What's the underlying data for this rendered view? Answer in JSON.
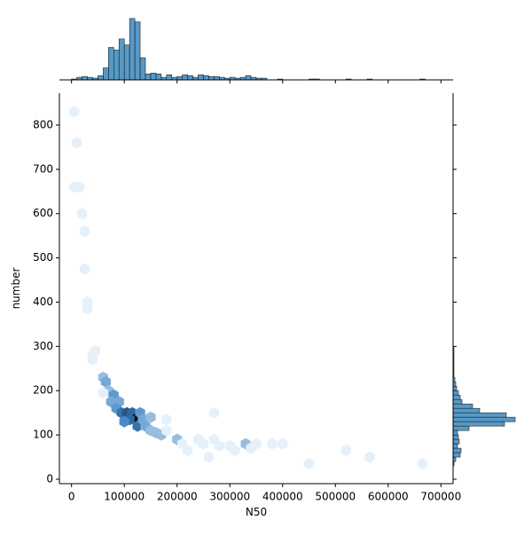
{
  "chart_data": [
    {
      "type": "hexbin",
      "xlabel": "N50",
      "ylabel": "number",
      "xlim": [
        -23000,
        723000
      ],
      "ylim": [
        -10,
        872
      ],
      "xticks": [
        0,
        100000,
        200000,
        300000,
        400000,
        500000,
        600000,
        700000
      ],
      "yticks": [
        0,
        100,
        200,
        300,
        400,
        500,
        600,
        700,
        800
      ],
      "colors": [
        "#e6f0fa",
        "#3a82c2",
        "#0a0a14"
      ],
      "x": [
        5000,
        10000,
        5000,
        15000,
        20000,
        25000,
        25000,
        30000,
        30000,
        40000,
        45000,
        40000,
        60000,
        65000,
        70000,
        60000,
        80000,
        75000,
        90000,
        85000,
        95000,
        105000,
        115000,
        120000,
        110000,
        100000,
        125000,
        130000,
        135000,
        140000,
        150000,
        160000,
        170000,
        180000,
        200000,
        210000,
        220000,
        240000,
        250000,
        270000,
        270000,
        280000,
        300000,
        310000,
        330000,
        340000,
        350000,
        380000,
        400000,
        450000,
        520000,
        565000,
        665000,
        260000,
        150000,
        180000
      ],
      "y": [
        830,
        760,
        660,
        660,
        600,
        560,
        475,
        400,
        385,
        280,
        290,
        270,
        230,
        220,
        200,
        195,
        190,
        175,
        175,
        160,
        150,
        150,
        150,
        135,
        135,
        130,
        120,
        150,
        135,
        120,
        110,
        105,
        100,
        110,
        90,
        80,
        65,
        90,
        80,
        90,
        150,
        75,
        75,
        65,
        80,
        70,
        80,
        80,
        80,
        35,
        65,
        50,
        35,
        50,
        140,
        135
      ],
      "counts": [
        1,
        1,
        1,
        1,
        1,
        1,
        1,
        1,
        1,
        1,
        1,
        1,
        2,
        3,
        2,
        1,
        4,
        3,
        3,
        4,
        7,
        10,
        8,
        20,
        8,
        5,
        7,
        4,
        3,
        3,
        2,
        2,
        2,
        1,
        2,
        1,
        1,
        1,
        1,
        1,
        1,
        1,
        1,
        1,
        2,
        1,
        1,
        1,
        1,
        1,
        1,
        1,
        1,
        1,
        2,
        1
      ]
    },
    {
      "type": "histogram",
      "orientation": "vertical",
      "color": "#1f77b4",
      "xlim": [
        -23000,
        723000
      ],
      "ylim": [
        0,
        75
      ],
      "bins": [
        0,
        10000,
        20000,
        30000,
        40000,
        50000,
        60000,
        70000,
        80000,
        90000,
        100000,
        110000,
        120000,
        130000,
        140000,
        150000,
        160000,
        170000,
        180000,
        190000,
        200000,
        210000,
        220000,
        230000,
        240000,
        250000,
        260000,
        270000,
        280000,
        290000,
        300000,
        310000,
        320000,
        330000,
        340000,
        350000,
        360000,
        370000,
        380000,
        390000,
        400000,
        410000,
        420000,
        430000,
        440000,
        450000,
        460000,
        470000,
        480000,
        490000,
        500000,
        510000,
        520000,
        530000,
        540000,
        550000,
        560000,
        570000,
        580000,
        590000,
        600000,
        610000,
        620000,
        630000,
        640000,
        650000,
        660000,
        670000,
        680000
      ],
      "counts": [
        1,
        3,
        4,
        3,
        2,
        5,
        14,
        38,
        35,
        48,
        41,
        72,
        68,
        26,
        7,
        8,
        7,
        3,
        6,
        3,
        4,
        6,
        5,
        3,
        6,
        5,
        4,
        4,
        3,
        2,
        3,
        2,
        3,
        5,
        3,
        2,
        2,
        0,
        0,
        1,
        0,
        0,
        0,
        0,
        0,
        1,
        1,
        0,
        0,
        0,
        0,
        0,
        1,
        0,
        0,
        0,
        1,
        0,
        0,
        0,
        0,
        0,
        0,
        0,
        0,
        0,
        1,
        0
      ]
    },
    {
      "type": "histogram",
      "orientation": "horizontal",
      "color": "#1f77b4",
      "xlim": [
        0,
        72
      ],
      "ylim": [
        -10,
        872
      ],
      "bins": [
        30,
        40,
        50,
        60,
        70,
        80,
        90,
        100,
        110,
        120,
        130,
        140,
        150,
        160,
        170,
        180,
        190,
        200,
        210,
        220,
        230,
        240,
        250,
        260,
        270,
        280,
        290,
        300
      ],
      "counts": [
        1,
        3,
        8,
        9,
        5,
        7,
        6,
        5,
        18,
        58,
        70,
        60,
        30,
        22,
        10,
        8,
        6,
        4,
        3,
        2,
        1,
        1,
        1,
        1,
        1,
        1,
        1
      ]
    }
  ]
}
